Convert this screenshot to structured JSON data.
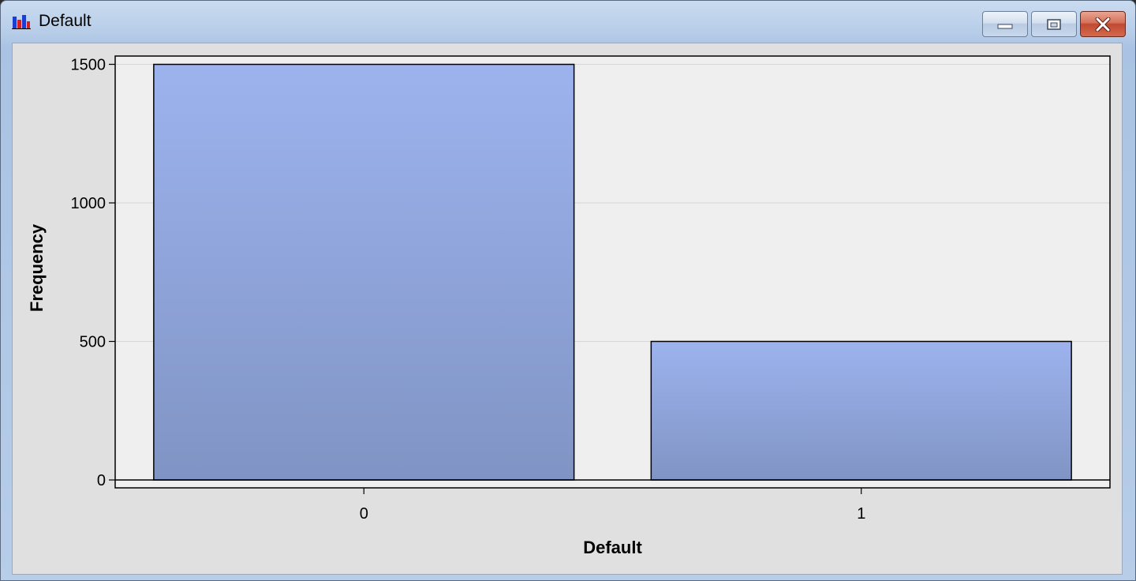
{
  "window": {
    "title": "Default",
    "app_icon": "bar-chart-icon",
    "buttons": {
      "minimize": "minimize-icon",
      "maximize": "restore-icon",
      "close": "close-icon"
    }
  },
  "chart_data": {
    "type": "bar",
    "categories": [
      "0",
      "1"
    ],
    "values": [
      1500,
      500
    ],
    "xlabel": "Default",
    "ylabel": "Frequency",
    "ylim": [
      0,
      1530
    ],
    "yticks": [
      0,
      500,
      1000,
      1500
    ],
    "grid": true,
    "colors": {
      "bar_top": "#9db3ee",
      "bar_bottom": "#8094c4",
      "plot_bg": "#efefef",
      "outline": "#000000"
    }
  }
}
